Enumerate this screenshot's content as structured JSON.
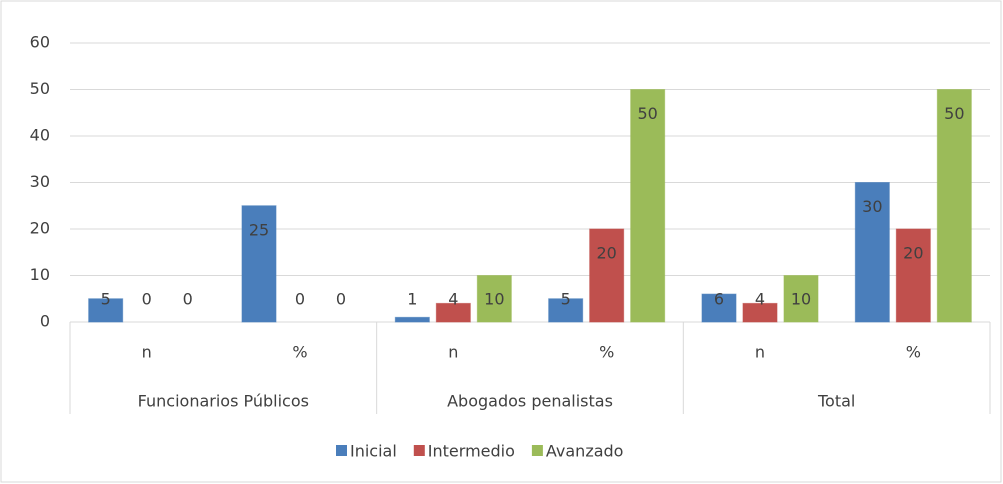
{
  "chart_data": {
    "type": "bar",
    "categories": [
      "n",
      "%",
      "n",
      "%",
      "n",
      "%"
    ],
    "category_groups": [
      "Funcionarios Públicos",
      "Abogados penalistas",
      "Total"
    ],
    "series": [
      {
        "name": "Inicial",
        "color": "#4a7ebb",
        "values": [
          5,
          25,
          1,
          5,
          6,
          30
        ]
      },
      {
        "name": "Intermedio",
        "color": "#c0504d",
        "values": [
          0,
          0,
          4,
          20,
          4,
          20
        ]
      },
      {
        "name": "Avanzado",
        "color": "#9bbb59",
        "values": [
          0,
          0,
          10,
          50,
          10,
          50
        ]
      }
    ],
    "ylim": [
      0,
      60
    ],
    "yticks": [
      0,
      10,
      20,
      30,
      40,
      50,
      60
    ],
    "grid": true,
    "legend": "bottom",
    "data_labels": true
  }
}
